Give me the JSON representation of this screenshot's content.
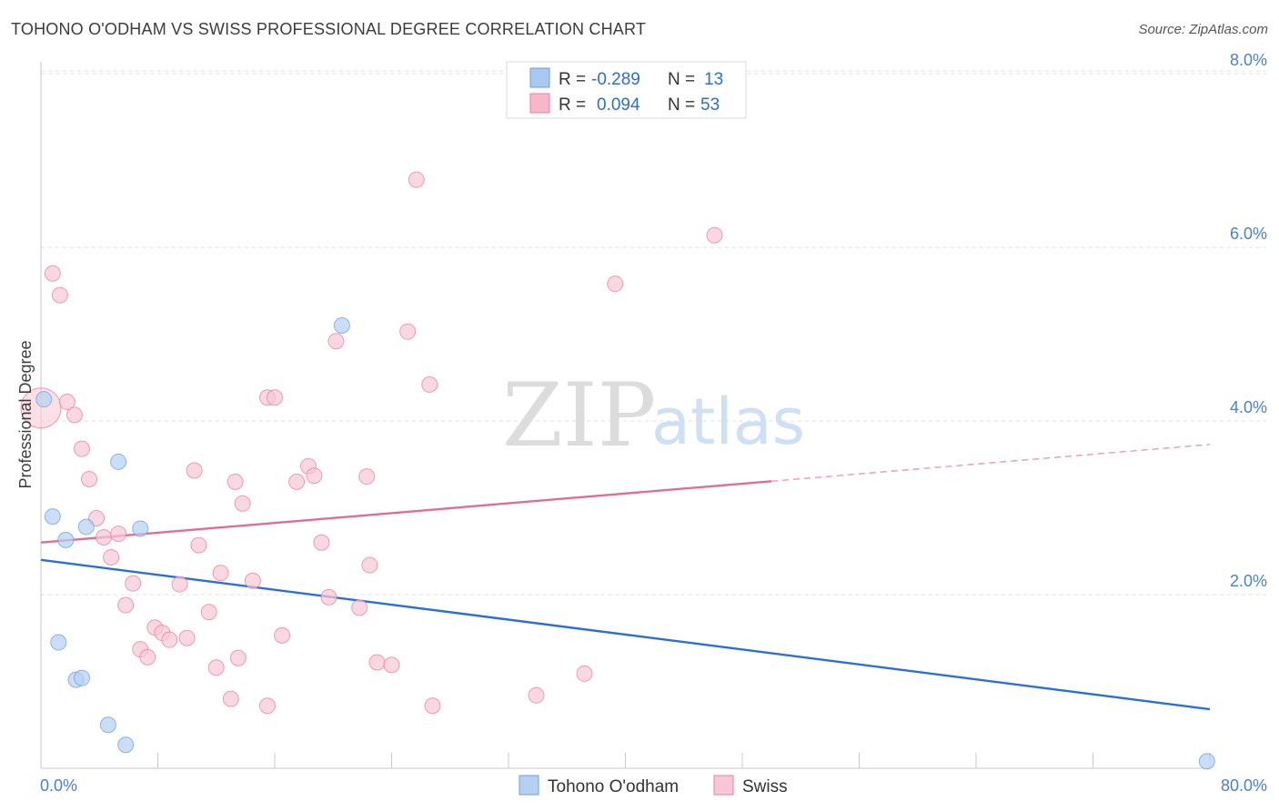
{
  "header": {
    "title": "TOHONO O'ODHAM VS SWISS PROFESSIONAL DEGREE CORRELATION CHART",
    "source": "Source: ZipAtlas.com"
  },
  "watermark": {
    "zip": "ZIP",
    "atlas": "atlas"
  },
  "stats": {
    "r_label": "R =",
    "n_label": "N =",
    "rows": [
      {
        "r": "-0.289",
        "n": "13",
        "color": "#a9c8f2"
      },
      {
        "r": "0.094",
        "n": "53",
        "color": "#f7b7c9"
      }
    ]
  },
  "chart_data": {
    "type": "scatter",
    "title": "TOHONO O'ODHAM VS SWISS PROFESSIONAL DEGREE CORRELATION CHART",
    "xlabel": "",
    "ylabel": "Professional Degree",
    "xlim": [
      0,
      80
    ],
    "ylim": [
      0,
      8.2
    ],
    "x_tick_labels": [
      "0.0%",
      "80.0%"
    ],
    "y_ticks": [
      2,
      4,
      6,
      8
    ],
    "y_tick_labels": [
      "2.0%",
      "4.0%",
      "6.0%",
      "8.0%"
    ],
    "grid": true,
    "legend_position": "bottom-center",
    "series": [
      {
        "name": "Tohono O'odham",
        "color": "#6c9ee6",
        "fill": "#b5d0f4",
        "trend": {
          "x": [
            0,
            80
          ],
          "y": [
            2.4,
            0.68
          ],
          "solid_until": 80
        },
        "points": [
          [
            0.2,
            4.25
          ],
          [
            0.8,
            2.9
          ],
          [
            1.7,
            2.63
          ],
          [
            3.1,
            2.78
          ],
          [
            5.3,
            3.53
          ],
          [
            6.8,
            2.76
          ],
          [
            1.2,
            1.45
          ],
          [
            2.4,
            1.02
          ],
          [
            2.8,
            1.04
          ],
          [
            4.6,
            0.5
          ],
          [
            5.8,
            0.27
          ],
          [
            20.6,
            5.1
          ],
          [
            79.8,
            0.08
          ]
        ]
      },
      {
        "name": "Swiss",
        "color": "#e87fa0",
        "fill": "#f8c7d6",
        "trend": {
          "x": [
            0,
            80
          ],
          "y": [
            2.6,
            3.73
          ],
          "solid_until": 50
        },
        "points": [
          [
            0.0,
            4.15
          ],
          [
            0.8,
            5.7
          ],
          [
            1.3,
            5.45
          ],
          [
            1.8,
            4.22
          ],
          [
            2.3,
            4.07
          ],
          [
            2.8,
            3.68
          ],
          [
            3.3,
            3.33
          ],
          [
            3.8,
            2.88
          ],
          [
            4.3,
            2.66
          ],
          [
            4.8,
            2.43
          ],
          [
            5.3,
            2.7
          ],
          [
            5.8,
            1.88
          ],
          [
            6.3,
            2.13
          ],
          [
            6.8,
            1.37
          ],
          [
            7.3,
            1.28
          ],
          [
            7.8,
            1.62
          ],
          [
            8.3,
            1.56
          ],
          [
            8.8,
            1.48
          ],
          [
            9.5,
            2.12
          ],
          [
            10.0,
            1.5
          ],
          [
            10.5,
            3.43
          ],
          [
            10.8,
            2.57
          ],
          [
            11.5,
            1.8
          ],
          [
            12.0,
            1.16
          ],
          [
            12.3,
            2.25
          ],
          [
            13.0,
            0.8
          ],
          [
            13.3,
            3.3
          ],
          [
            13.5,
            1.27
          ],
          [
            13.8,
            3.05
          ],
          [
            14.5,
            2.16
          ],
          [
            15.5,
            0.72
          ],
          [
            15.5,
            4.27
          ],
          [
            16.0,
            4.27
          ],
          [
            16.5,
            1.53
          ],
          [
            17.5,
            3.3
          ],
          [
            18.3,
            3.48
          ],
          [
            18.7,
            3.37
          ],
          [
            19.2,
            2.6
          ],
          [
            19.7,
            1.97
          ],
          [
            20.2,
            4.92
          ],
          [
            21.8,
            1.85
          ],
          [
            22.3,
            3.36
          ],
          [
            22.5,
            2.34
          ],
          [
            23.0,
            1.22
          ],
          [
            24.0,
            1.19
          ],
          [
            25.1,
            5.03
          ],
          [
            25.7,
            6.78
          ],
          [
            26.6,
            4.42
          ],
          [
            26.8,
            0.72
          ],
          [
            33.9,
            0.84
          ],
          [
            37.2,
            1.09
          ],
          [
            39.3,
            5.58
          ],
          [
            46.1,
            6.14
          ]
        ]
      }
    ]
  }
}
